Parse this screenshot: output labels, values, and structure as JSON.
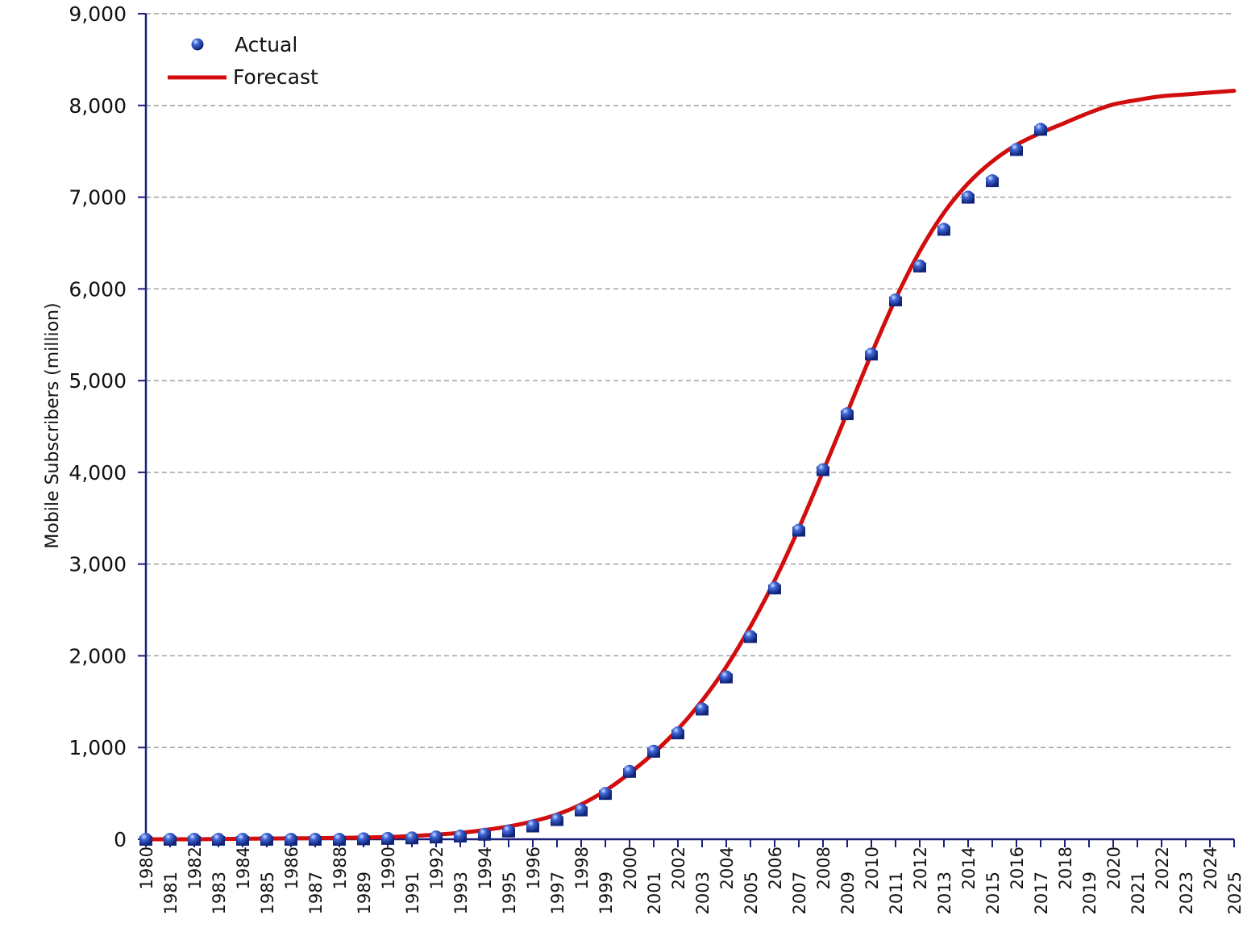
{
  "chart_data": {
    "type": "line",
    "ylabel": "Mobile Subscribers (million)",
    "xlabel": "",
    "ylim": [
      0,
      9000
    ],
    "yticks": [
      0,
      1000,
      2000,
      3000,
      4000,
      5000,
      6000,
      7000,
      8000,
      9000
    ],
    "ytick_labels": [
      "0",
      "1,000",
      "2,000",
      "3,000",
      "4,000",
      "5,000",
      "6,000",
      "7,000",
      "8,000",
      "9,000"
    ],
    "xlim": [
      1980,
      2025
    ],
    "xtick_labels": [
      "1980",
      "1981",
      "1982",
      "1983",
      "1984",
      "1985",
      "1986",
      "1987",
      "1988",
      "1989",
      "1990",
      "1991",
      "1992",
      "1993",
      "1994",
      "1995",
      "1996",
      "1997",
      "1998",
      "1999",
      "2000",
      "2001",
      "2002",
      "2003",
      "2004",
      "2005",
      "2006",
      "2007",
      "2008",
      "2009",
      "2010",
      "2011",
      "2012",
      "2013",
      "2014",
      "2015",
      "2016",
      "2017",
      "2018",
      "2019",
      "2020",
      "2021",
      "2022",
      "2023",
      "2024",
      "2025"
    ],
    "grid": true,
    "legend_position": "top-left",
    "series": [
      {
        "name": "Actual",
        "kind": "scatter",
        "color": "#1f3fae",
        "x": [
          1980,
          1981,
          1982,
          1983,
          1984,
          1985,
          1986,
          1987,
          1988,
          1989,
          1990,
          1991,
          1992,
          1993,
          1994,
          1995,
          1996,
          1997,
          1998,
          1999,
          2000,
          2001,
          2002,
          2003,
          2004,
          2005,
          2006,
          2007,
          2008,
          2009,
          2010,
          2011,
          2012,
          2013,
          2014,
          2015,
          2016,
          2017
        ],
        "y": [
          0,
          0,
          0,
          0,
          0,
          0,
          0,
          0,
          0,
          5,
          10,
          15,
          25,
          35,
          55,
          90,
          145,
          215,
          320,
          500,
          740,
          960,
          1160,
          1420,
          1770,
          2210,
          2740,
          3370,
          4030,
          4640,
          5290,
          5880,
          6250,
          6650,
          7000,
          7180,
          7520,
          7740
        ]
      },
      {
        "name": "Forecast",
        "kind": "line",
        "color": "#d10d0d",
        "x": [
          1980,
          1982,
          1984,
          1986,
          1988,
          1990,
          1991,
          1992,
          1993,
          1994,
          1995,
          1996,
          1997,
          1998,
          1999,
          2000,
          2001,
          2002,
          2003,
          2004,
          2005,
          2006,
          2007,
          2008,
          2009,
          2010,
          2011,
          2012,
          2013,
          2014,
          2015,
          2016,
          2017,
          2018,
          2019,
          2020,
          2021,
          2022,
          2023,
          2024,
          2025
        ],
        "y": [
          0,
          0,
          5,
          10,
          15,
          25,
          35,
          50,
          70,
          100,
          140,
          195,
          270,
          380,
          530,
          720,
          940,
          1200,
          1510,
          1880,
          2320,
          2820,
          3390,
          4010,
          4650,
          5290,
          5890,
          6410,
          6830,
          7150,
          7390,
          7570,
          7700,
          7810,
          7920,
          8010,
          8060,
          8100,
          8120,
          8140,
          8160
        ]
      }
    ]
  },
  "legend": {
    "actual_label": "Actual",
    "forecast_label": "Forecast"
  }
}
